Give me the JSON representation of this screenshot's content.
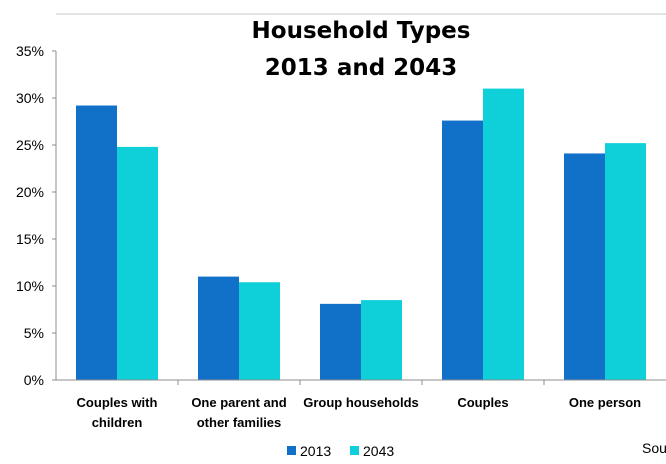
{
  "chart_data": {
    "type": "bar",
    "title_lines": [
      "Household Types",
      "2013 and 2043"
    ],
    "categories": [
      [
        "Couples with",
        "children"
      ],
      [
        "One parent and",
        "other families"
      ],
      [
        "Group households"
      ],
      [
        "Couples"
      ],
      [
        "One person"
      ]
    ],
    "series": [
      {
        "name": "2013",
        "color": "#1170c8",
        "values": [
          29.2,
          11.0,
          8.1,
          27.6,
          24.1
        ]
      },
      {
        "name": "2043",
        "color": "#0fd0d8",
        "values": [
          24.8,
          10.4,
          8.5,
          31.0,
          25.2
        ]
      }
    ],
    "ylim": [
      0,
      35
    ],
    "yticks": [
      "0%",
      "5%",
      "10%",
      "15%",
      "20%",
      "25%",
      "30%",
      "35%"
    ],
    "legend_position": "bottom",
    "grid": false
  },
  "source_text": "Sou"
}
